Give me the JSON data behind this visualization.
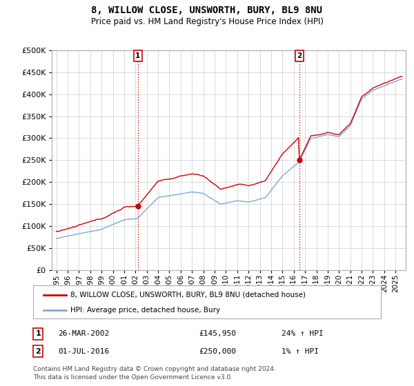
{
  "title": "8, WILLOW CLOSE, UNSWORTH, BURY, BL9 8NU",
  "subtitle": "Price paid vs. HM Land Registry's House Price Index (HPI)",
  "hpi_label": "HPI: Average price, detached house, Bury",
  "property_label": "8, WILLOW CLOSE, UNSWORTH, BURY, BL9 8NU (detached house)",
  "transaction1_date": "26-MAR-2002",
  "transaction1_price": "£145,950",
  "transaction1_hpi": "24% ↑ HPI",
  "transaction2_date": "01-JUL-2016",
  "transaction2_price": "£250,000",
  "transaction2_hpi": "1% ↑ HPI",
  "footer1": "Contains HM Land Registry data © Crown copyright and database right 2024.",
  "footer2": "This data is licensed under the Open Government Licence v3.0.",
  "hpi_color": "#7aaadd",
  "property_color": "#cc0000",
  "background_color": "#ffffff",
  "grid_color": "#cccccc",
  "ylim": [
    0,
    500000
  ],
  "yticks": [
    0,
    50000,
    100000,
    150000,
    200000,
    250000,
    300000,
    350000,
    400000,
    450000,
    500000
  ],
  "t1_x": 2002.22,
  "t1_y": 145950,
  "t2_x": 2016.5,
  "t2_y": 250000,
  "xmin": 1994.6,
  "xmax": 2025.9
}
